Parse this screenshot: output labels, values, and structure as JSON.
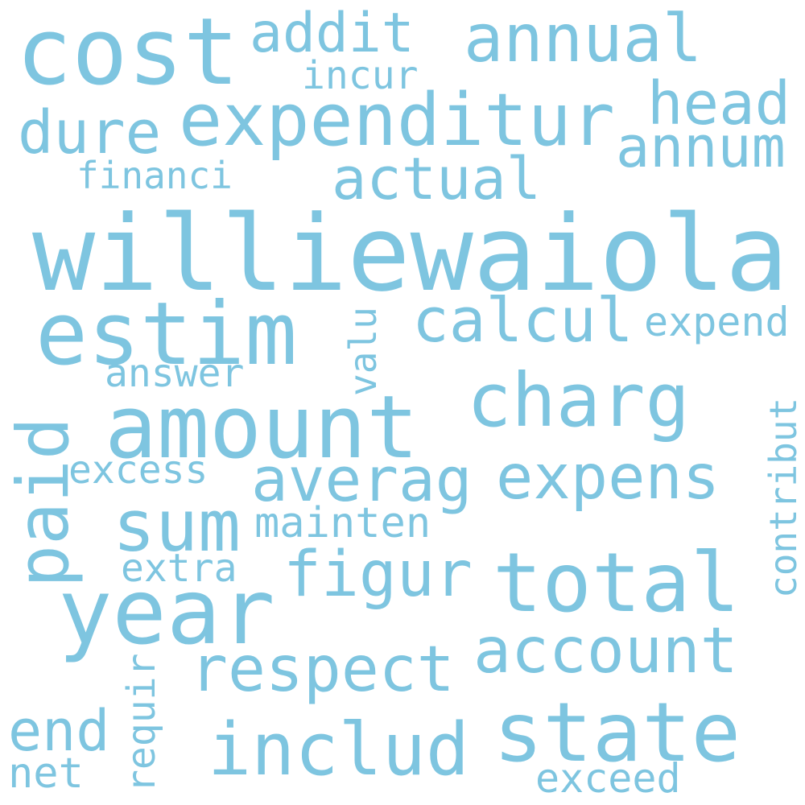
{
  "style": {
    "word_color": "#7ec5e0",
    "background": "#ffffff"
  },
  "words": [
    "williewaiola",
    "cost",
    "expenditur",
    "amount",
    "estim",
    "year",
    "total",
    "state",
    "includ",
    "charg",
    "expens",
    "account",
    "respect",
    "sum",
    "annual",
    "paid",
    "figur",
    "calcul",
    "averag",
    "actual",
    "annum",
    "head",
    "dure",
    "addit",
    "end",
    "contribut",
    "valu",
    "mainten",
    "expend",
    "answer",
    "excess",
    "extra",
    "incur",
    "financi",
    "requir",
    "net",
    "exceed"
  ]
}
